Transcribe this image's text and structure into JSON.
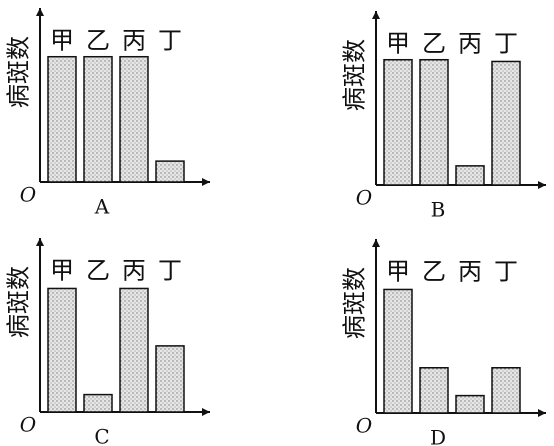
{
  "chart_data": [
    {
      "type": "bar",
      "label": "A",
      "y_label": "病斑数",
      "origin_label": "O",
      "categories": [
        "甲",
        "乙",
        "丙",
        "丁"
      ],
      "values": [
        7.2,
        7.2,
        7.2,
        1.2
      ],
      "ylim": [
        0,
        10
      ]
    },
    {
      "type": "bar",
      "label": "B",
      "y_label": "病斑数",
      "origin_label": "O",
      "categories": [
        "甲",
        "乙",
        "丙",
        "丁"
      ],
      "values": [
        7.2,
        7.2,
        1.1,
        7.1
      ],
      "ylim": [
        0,
        10
      ]
    },
    {
      "type": "bar",
      "label": "C",
      "y_label": "病斑数",
      "origin_label": "O",
      "categories": [
        "甲",
        "乙",
        "丙",
        "丁"
      ],
      "values": [
        7.1,
        1.0,
        7.1,
        3.8
      ],
      "ylim": [
        0,
        10
      ]
    },
    {
      "type": "bar",
      "label": "D",
      "y_label": "病斑数",
      "origin_label": "O",
      "categories": [
        "甲",
        "乙",
        "丙",
        "丁"
      ],
      "values": [
        7.1,
        2.6,
        1.0,
        2.6
      ],
      "ylim": [
        0,
        10
      ]
    }
  ]
}
